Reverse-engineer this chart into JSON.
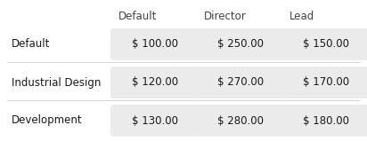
{
  "col_headers": [
    "Default",
    "Director",
    "Lead"
  ],
  "row_headers": [
    "Default",
    "Industrial Design",
    "Development"
  ],
  "values": [
    [
      "$ 100.00",
      "$ 250.00",
      "$ 150.00"
    ],
    [
      "$ 120.00",
      "$ 270.00",
      "$ 170.00"
    ],
    [
      "$ 130.00",
      "$ 280.00",
      "$ 180.00"
    ]
  ],
  "bg_color": "#ffffff",
  "cell_bg_color": "#ebebeb",
  "header_fontsize": 8.5,
  "row_header_fontsize": 8.5,
  "cell_fontsize": 8.5,
  "divider_color": "#cccccc",
  "text_color": "#1a1a1a",
  "col_header_color": "#444444",
  "row_header_weight": "normal",
  "fig_width": 4.12,
  "fig_height": 1.59,
  "dpi": 100
}
